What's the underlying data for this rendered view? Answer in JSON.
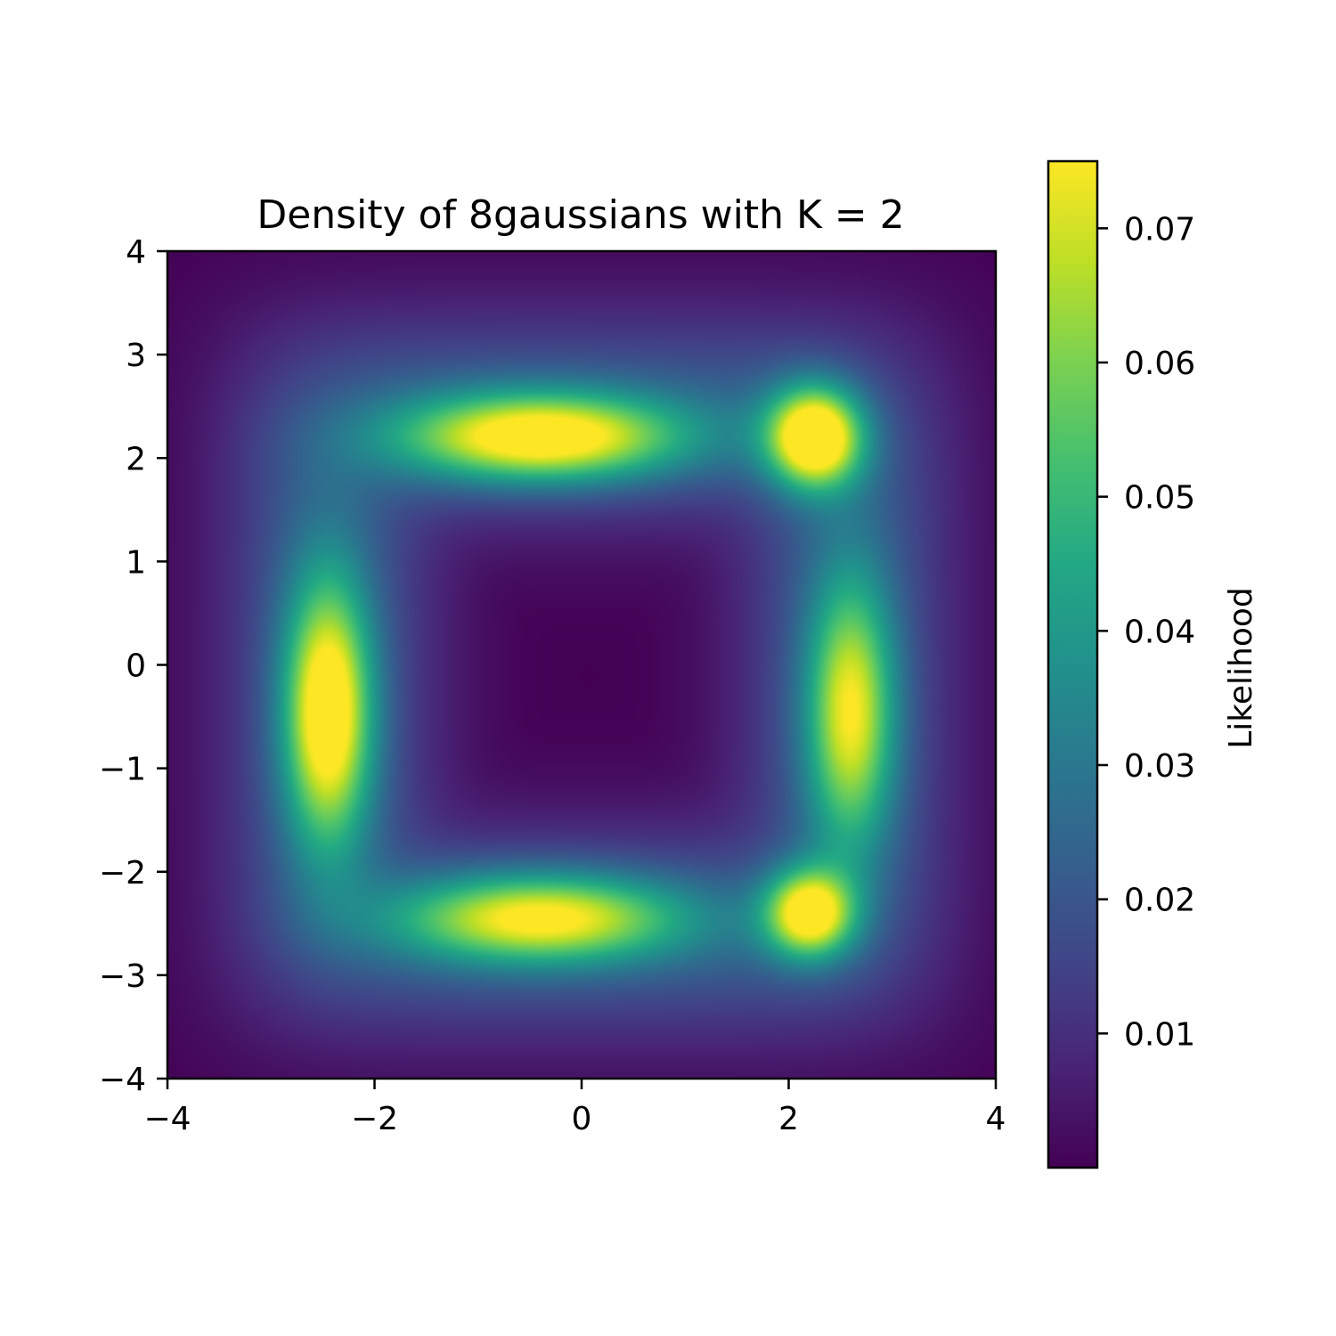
{
  "chart_data": {
    "type": "heatmap",
    "title": "Density of 8gaussians with K = 2",
    "xlabel": "",
    "ylabel": "",
    "xlim": [
      -4,
      4
    ],
    "ylim": [
      -4,
      4
    ],
    "x_ticks": [
      -4,
      -2,
      0,
      2,
      4
    ],
    "x_tick_labels": [
      "−4",
      "−2",
      "0",
      "2",
      "4"
    ],
    "y_ticks": [
      4,
      3,
      2,
      1,
      0,
      -1,
      -2,
      -3,
      -4
    ],
    "y_tick_labels": [
      "4",
      "3",
      "2",
      "1",
      "0",
      "−1",
      "−2",
      "−3",
      "−4"
    ],
    "colormap": "viridis",
    "grid": false,
    "colorbar": {
      "label": "Likelihood",
      "range": [
        0.0,
        0.075
      ],
      "ticks": [
        0.07,
        0.06,
        0.05,
        0.04,
        0.03,
        0.02,
        0.01
      ],
      "tick_labels": [
        "0.07",
        "0.06",
        "0.05",
        "0.04",
        "0.03",
        "0.02",
        "0.01"
      ]
    },
    "components": [
      {
        "x": -0.4,
        "y": 2.2,
        "sx": 0.95,
        "sy": 0.3,
        "peak": 0.066
      },
      {
        "x": 2.25,
        "y": 2.2,
        "sx": 0.32,
        "sy": 0.34,
        "peak": 0.075
      },
      {
        "x": -2.45,
        "y": -0.45,
        "sx": 0.3,
        "sy": 0.9,
        "peak": 0.067
      },
      {
        "x": 2.6,
        "y": -0.45,
        "sx": 0.3,
        "sy": 0.9,
        "peak": 0.054
      },
      {
        "x": -0.4,
        "y": -2.45,
        "sx": 0.95,
        "sy": 0.3,
        "peak": 0.058
      },
      {
        "x": 2.2,
        "y": -2.4,
        "sx": 0.3,
        "sy": 0.3,
        "peak": 0.065
      }
    ],
    "ring": {
      "center": [
        0.05,
        -0.1
      ],
      "half_width": 2.5,
      "thickness": 0.75,
      "level": 0.022
    }
  }
}
